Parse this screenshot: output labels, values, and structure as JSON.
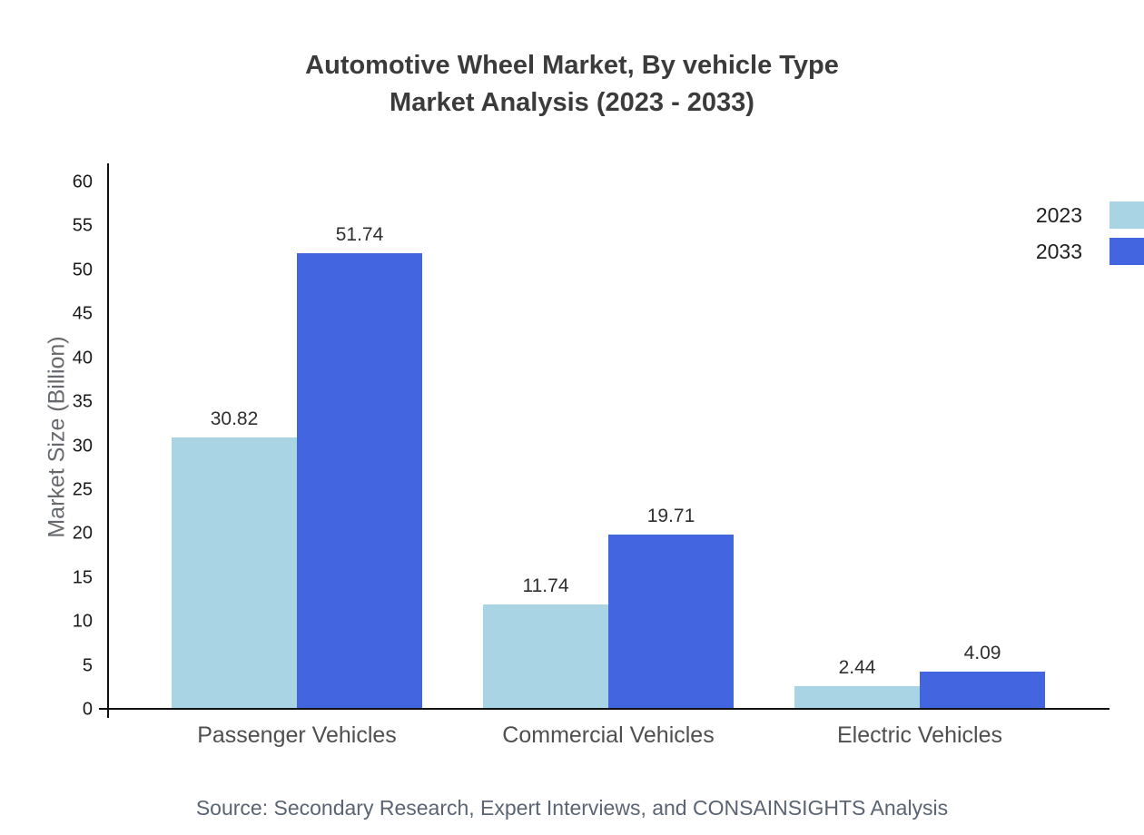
{
  "chart_data": {
    "type": "bar",
    "title_line1": "Automotive Wheel Market, By vehicle Type",
    "title_line2": "Market Analysis (2023 - 2033)",
    "title": "Automotive Wheel Market, By vehicle Type Market Analysis (2023 - 2033)",
    "xlabel": "",
    "ylabel": "Market Size (Billion)",
    "categories": [
      "Passenger Vehicles",
      "Commercial Vehicles",
      "Electric Vehicles"
    ],
    "series": [
      {
        "name": "2023",
        "color": "#a8d4e4",
        "values": [
          30.82,
          11.74,
          2.44
        ]
      },
      {
        "name": "2033",
        "color": "#4366e0",
        "values": [
          51.74,
          19.71,
          4.09
        ]
      }
    ],
    "ylim": [
      0,
      60
    ],
    "yticks": [
      0,
      5,
      10,
      15,
      20,
      25,
      30,
      35,
      40,
      45,
      50,
      55,
      60
    ],
    "grid": false,
    "legend_position": "top-right",
    "source": "Source: Secondary Research, Expert Interviews, and CONSAINSIGHTS Analysis"
  }
}
